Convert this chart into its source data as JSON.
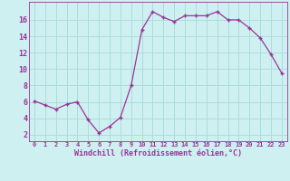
{
  "x": [
    0,
    1,
    2,
    3,
    4,
    5,
    6,
    7,
    8,
    9,
    10,
    11,
    12,
    13,
    14,
    15,
    16,
    17,
    18,
    19,
    20,
    21,
    22,
    23
  ],
  "y": [
    6.1,
    5.6,
    5.1,
    5.7,
    6.0,
    3.8,
    2.2,
    3.0,
    4.1,
    8.0,
    14.8,
    17.0,
    16.3,
    15.8,
    16.5,
    16.5,
    16.5,
    17.0,
    16.0,
    16.0,
    15.0,
    13.8,
    11.8,
    9.5
  ],
  "line_color": "#993399",
  "marker": "+",
  "marker_size": 3,
  "bg_color": "#cff0f0",
  "grid_color": "#aadddd",
  "xlabel": "Windchill (Refroidissement éolien,°C)",
  "xlabel_color": "#993399",
  "tick_color": "#993399",
  "yticks": [
    2,
    4,
    6,
    8,
    10,
    12,
    14,
    16
  ],
  "xtick_labels": [
    "0",
    "1",
    "2",
    "3",
    "4",
    "5",
    "6",
    "7",
    "8",
    "9",
    "10",
    "11",
    "12",
    "13",
    "14",
    "15",
    "16",
    "17",
    "18",
    "19",
    "20",
    "21",
    "22",
    "23"
  ],
  "ylim": [
    1.2,
    18.2
  ],
  "xlim": [
    -0.5,
    23.5
  ]
}
